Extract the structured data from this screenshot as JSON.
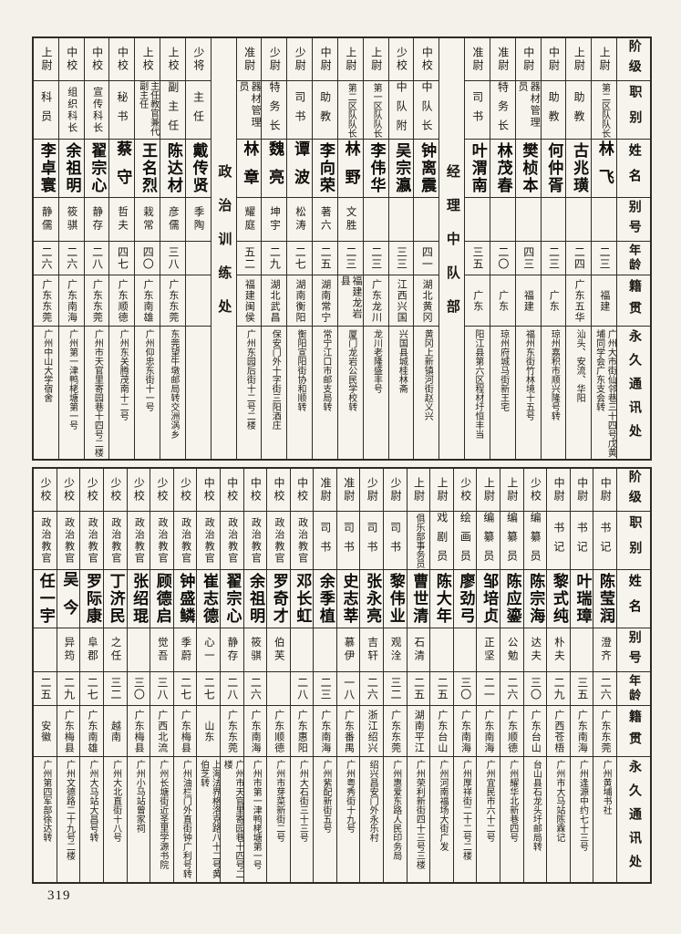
{
  "page": {
    "number": "319"
  },
  "headers": [
    "阶级",
    "职别",
    "姓名",
    "别号",
    "年龄",
    "籍贯",
    "永久通讯处"
  ],
  "tables": [
    {
      "name": "top",
      "columns": [
        {
          "type": "header"
        },
        {
          "type": "person",
          "rank": "上尉",
          "title": "第二区队队长",
          "name": "林飞",
          "alias": "",
          "age": "二三",
          "native": "福建",
          "address": "广州大市街仙邻巷三十四号戊黄埔同学会广东支会转"
        },
        {
          "type": "person",
          "rank": "上尉",
          "title": "助教",
          "name": "古兆璜",
          "alias": "",
          "age": "二四",
          "native": "广东五华",
          "address": "汕头、安流、华阳"
        },
        {
          "type": "person",
          "rank": "中尉",
          "title": "助教",
          "name": "何仲胥",
          "alias": "",
          "age": "二三",
          "native": "广东",
          "address": "琼州嘉积市顺兴隆号转"
        },
        {
          "type": "person",
          "rank": "中尉",
          "title": "器材管理员",
          "name": "樊桢本",
          "alias": "",
          "age": "四三",
          "native": "福建",
          "address": "福州东街竹林境十五号"
        },
        {
          "type": "person",
          "rank": "准尉",
          "title": "特务长",
          "name": "林茂春",
          "alias": "",
          "age": "二〇",
          "native": "广东",
          "address": "琼州府城马街新王宅"
        },
        {
          "type": "person",
          "rank": "准尉",
          "title": "司书",
          "name": "叶渭南",
          "alias": "",
          "age": "三五",
          "native": "广东",
          "address": "阳江县第六区程材圩恒丰当"
        },
        {
          "type": "section",
          "label": "经理中队部"
        },
        {
          "type": "person",
          "rank": "中校",
          "title": "中队长",
          "name": "钟离震",
          "alias": "",
          "age": "四一",
          "native": "湖北黄冈",
          "address": "黄冈上新镇河街赵义兴"
        },
        {
          "type": "person",
          "rank": "少校",
          "title": "中队附",
          "name": "吴宗瀛",
          "alias": "",
          "age": "三三",
          "native": "江西兴国",
          "address": "兴国县城桂林斋"
        },
        {
          "type": "person",
          "rank": "上尉",
          "title": "第一区队队长",
          "name": "李伟华",
          "alias": "",
          "age": "二三",
          "native": "广东龙川",
          "address": "龙川老隆盛丰号"
        },
        {
          "type": "person",
          "rank": "上尉",
          "title": "第二区队队长",
          "name": "林野",
          "alias": "文胜",
          "age": "二三",
          "native": "福建龙岩县",
          "address": "厦门龙岩公民学校转"
        },
        {
          "type": "person",
          "rank": "中尉",
          "title": "助教",
          "name": "李向荣",
          "alias": "著六",
          "age": "二五",
          "native": "湖南常宁",
          "address": "常宁江口市邮支局转"
        },
        {
          "type": "person",
          "rank": "少尉",
          "title": "司书",
          "name": "谭波",
          "alias": "松涛",
          "age": "二七",
          "native": "湖南衡阳",
          "address": "衡阳宣阳街协和顺转"
        },
        {
          "type": "person",
          "rank": "少尉",
          "title": "特务长",
          "name": "魏亮",
          "alias": "坤宇",
          "age": "二九",
          "native": "湖北武昌",
          "address": "保安门外十字街三阳酒庄"
        },
        {
          "type": "person",
          "rank": "准尉",
          "title": "器材管理员",
          "name": "林章",
          "alias": "耀庭",
          "age": "五二",
          "native": "福建闽侯",
          "address": "广州东园后街十二号二楼"
        },
        {
          "type": "section",
          "label": "政治训练处"
        },
        {
          "type": "person",
          "rank": "少将",
          "title": "主任",
          "name": "戴传贤",
          "alias": "季陶",
          "age": "",
          "native": "",
          "address": ""
        },
        {
          "type": "person",
          "rank": "上校",
          "title": "副主任",
          "name": "陈达材",
          "alias": "彦儒",
          "age": "三八",
          "native": "广东东莞",
          "address": "东莞望牛墩邮局转交洲涡乡"
        },
        {
          "type": "person",
          "rank": "上校",
          "title": "主任教官兼代副主任",
          "name": "王名烈",
          "alias": "栽常",
          "age": "四〇",
          "native": "广东南雄",
          "address": "广州仰忠东街十一号"
        },
        {
          "type": "person",
          "rank": "中校",
          "title": "秘书",
          "name": "蔡守",
          "alias": "哲夫",
          "age": "四七",
          "native": "广东顺德",
          "address": "广州东关腾茂南十二号"
        },
        {
          "type": "person",
          "rank": "中校",
          "title": "宣传科长",
          "name": "翟宗心",
          "alias": "静存",
          "age": "二八",
          "native": "广东东莞",
          "address": "广州市天官里寄园巷十四号二楼"
        },
        {
          "type": "person",
          "rank": "中校",
          "title": "组织科长",
          "name": "余祖明",
          "alias": "筱骐",
          "age": "二六",
          "native": "广东南海",
          "address": "广州第一津鸭栳塘第一号"
        },
        {
          "type": "person",
          "rank": "上尉",
          "title": "科员",
          "name": "李卓寰",
          "alias": "静儒",
          "age": "二六",
          "native": "广东东莞",
          "address": "广州中山大学宿舍"
        }
      ]
    },
    {
      "name": "bottom",
      "columns": [
        {
          "type": "header"
        },
        {
          "type": "person",
          "rank": "中尉",
          "title": "书记",
          "name": "陈莹润",
          "alias": "澄齐",
          "age": "二六",
          "native": "广东东莞",
          "address": "广州黄埔书社"
        },
        {
          "type": "person",
          "rank": "中尉",
          "title": "书记",
          "name": "叶瑞璋",
          "alias": "",
          "age": "三五",
          "native": "广东南海",
          "address": "广州逢源中约七十三号"
        },
        {
          "type": "person",
          "rank": "中尉",
          "title": "书记",
          "name": "黎式纯",
          "alias": "朴夫",
          "age": "二九",
          "native": "广西苍梧",
          "address": "广州市大马站陈霖记"
        },
        {
          "type": "person",
          "rank": "少校",
          "title": "编纂员",
          "name": "陈宗海",
          "alias": "达夫",
          "age": "三〇",
          "native": "广东台山",
          "address": "台山县石龙头圩邮局转"
        },
        {
          "type": "person",
          "rank": "上尉",
          "title": "编纂员",
          "name": "陈应鎏",
          "alias": "公勉",
          "age": "二六",
          "native": "广东顺德",
          "address": "广州耀华北新巷四号"
        },
        {
          "type": "person",
          "rank": "上尉",
          "title": "编纂员",
          "name": "邹培贞",
          "alias": "正坚",
          "age": "二一",
          "native": "广东南海",
          "address": "广州宜民市六十二号"
        },
        {
          "type": "person",
          "rank": "少校",
          "title": "绘画员",
          "name": "廖劲弓",
          "alias": "",
          "age": "三〇",
          "native": "广东南海",
          "address": "广州厚祥街二十二号二楼"
        },
        {
          "type": "person",
          "rank": "上尉",
          "title": "戏剧员",
          "name": "陈大年",
          "alias": "",
          "age": "二五",
          "native": "广东台山",
          "address": "广州河南福场大街广发"
        },
        {
          "type": "person",
          "rank": "上尉",
          "title": "俱乐部事务员",
          "name": "曹世清",
          "alias": "石清",
          "age": "二五",
          "native": "湖南平江",
          "address": "广州荣利新街四十三号三楼"
        },
        {
          "type": "person",
          "rank": "少尉",
          "title": "司书",
          "name": "黎伟业",
          "alias": "观洤",
          "age": "三二",
          "native": "广东东莞",
          "address": "广州惠爱东路人民印务局"
        },
        {
          "type": "person",
          "rank": "少尉",
          "title": "司书",
          "name": "张永亮",
          "alias": "吉轩",
          "age": "二六",
          "native": "浙江绍兴",
          "address": "绍兴昌安门外永乐村"
        },
        {
          "type": "person",
          "rank": "准尉",
          "title": "司书",
          "name": "史志莘",
          "alias": "慕伊",
          "age": "一八",
          "native": "广东番禺",
          "address": "广州粤秀街十九号"
        },
        {
          "type": "person",
          "rank": "准尉",
          "title": "司书",
          "name": "余季植",
          "alias": "",
          "age": "二三",
          "native": "广东南海",
          "address": "广州紫配新街五号"
        },
        {
          "type": "person",
          "rank": "中校",
          "title": "政治教官",
          "name": "邓长虹",
          "alias": "",
          "age": "二八",
          "native": "广东惠阳",
          "address": "广州大石街三十三号"
        },
        {
          "type": "person",
          "rank": "中校",
          "title": "政治教官",
          "name": "罗奇才",
          "alias": "伯芙",
          "age": "",
          "native": "广东顺德",
          "address": "广州市芽菜新街二号"
        },
        {
          "type": "person",
          "rank": "中校",
          "title": "政治教官",
          "name": "余祖明",
          "alias": "筱骐",
          "age": "二六",
          "native": "广东南海",
          "address": "广州市第一津鸭栳塘第一号"
        },
        {
          "type": "person",
          "rank": "中校",
          "title": "政治教官",
          "name": "翟宗心",
          "alias": "静存",
          "age": "二八",
          "native": "广东东莞",
          "address": "广州市天官里寄园巷十四号二楼"
        },
        {
          "type": "person",
          "rank": "中校",
          "title": "政治教官",
          "name": "崔志德",
          "alias": "心一",
          "age": "二七",
          "native": "山东",
          "address": "上海法界格洛克路八十二号黄伯芝转"
        },
        {
          "type": "person",
          "rank": "少校",
          "title": "政治教官",
          "name": "钟盛鳞",
          "alias": "季蔚",
          "age": "二七",
          "native": "广东梅县",
          "address": "广州油栏门外直街钟广利号转"
        },
        {
          "type": "person",
          "rank": "少校",
          "title": "政治教官",
          "name": "顾德启",
          "alias": "觉吾",
          "age": "三八",
          "native": "广西北流",
          "address": "广州长塘街近圣里学源书院"
        },
        {
          "type": "person",
          "rank": "少校",
          "title": "政治教官",
          "name": "张绍琨",
          "alias": "",
          "age": "三〇",
          "native": "广东梅县",
          "address": "广州小马站曾家祠"
        },
        {
          "type": "person",
          "rank": "少校",
          "title": "政治教官",
          "name": "丁济民",
          "alias": "之任",
          "age": "三二",
          "native": "越南",
          "address": "广州大北直街十八号"
        },
        {
          "type": "person",
          "rank": "少校",
          "title": "政治教官",
          "name": "罗际康",
          "alias": "阜郡",
          "age": "二七",
          "native": "广东南雄",
          "address": "广州大马站大昌号转"
        },
        {
          "type": "person",
          "rank": "少校",
          "title": "政治教官",
          "name": "吴今",
          "alias": "异筠",
          "age": "二九",
          "native": "广东梅县",
          "address": "广州文德路二十九号二楼"
        },
        {
          "type": "person",
          "rank": "少校",
          "title": "政治教官",
          "name": "任一宇",
          "alias": "",
          "age": "二五",
          "native": "安徽",
          "address": "广州第四军部徐达转"
        }
      ]
    }
  ]
}
